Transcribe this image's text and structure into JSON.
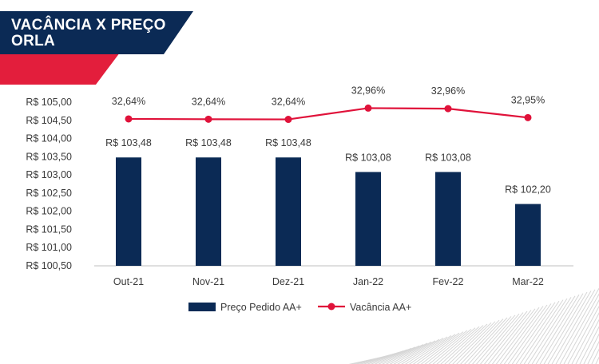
{
  "header": {
    "title_line1": "VACÂNCIA X PREÇO",
    "title_line2": "ORLA"
  },
  "colors": {
    "banner_navy": "#0b2a55",
    "banner_red": "#e31e3c",
    "bar": "#0b2a55",
    "line": "#e0123a"
  },
  "chart_data": {
    "type": "bar",
    "categories": [
      "Out-21",
      "Nov-21",
      "Dez-21",
      "Jan-22",
      "Fev-22",
      "Mar-22"
    ],
    "series": [
      {
        "name": "Preço Pedido AA+",
        "type": "bar",
        "values": [
          103.48,
          103.48,
          103.48,
          103.08,
          103.08,
          102.2
        ],
        "labels": [
          "R$ 103,48",
          "R$ 103,48",
          "R$ 103,48",
          "R$ 103,08",
          "R$ 103,08",
          "R$ 102,20"
        ]
      },
      {
        "name": "Vacância AA+",
        "type": "line",
        "values": [
          32.64,
          32.64,
          32.64,
          32.96,
          32.96,
          32.95
        ],
        "labels": [
          "32,64%",
          "32,64%",
          "32,64%",
          "32,96%",
          "32,96%",
          "32,95%"
        ]
      }
    ],
    "y_ticks": [
      "R$ 105,00",
      "R$ 104,50",
      "R$ 104,00",
      "R$ 103,50",
      "R$ 103,00",
      "R$ 102,50",
      "R$ 102,00",
      "R$ 101,50",
      "R$ 101,00",
      "R$ 100,50"
    ],
    "ylim": [
      100.5,
      105.0
    ],
    "grid": false,
    "legend_position": "bottom"
  }
}
